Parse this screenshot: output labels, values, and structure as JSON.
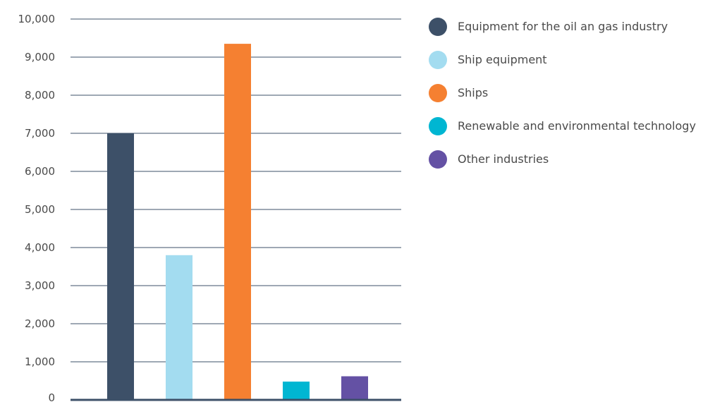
{
  "chart_data": {
    "type": "bar",
    "categories": [
      "Equipment for the oil an gas industry",
      "Ship equipment",
      "Ships",
      "Renewable and environmental technology",
      "Other industries"
    ],
    "series": [
      {
        "values": [
          7000,
          3800,
          9350,
          480,
          620
        ]
      }
    ],
    "colors": [
      "#3d5068",
      "#a3dcf0",
      "#f58031",
      "#00b6d2",
      "#6451a4"
    ],
    "ylim": [
      0,
      10000
    ],
    "yticks": [
      "0",
      "1,000",
      "2,000",
      "3,000",
      "4,000",
      "5,000",
      "6,000",
      "7,000",
      "8,000",
      "9,000",
      "10,000"
    ],
    "title": "",
    "xlabel": "",
    "ylabel": "",
    "grid": true,
    "legend_position": "top-right"
  }
}
